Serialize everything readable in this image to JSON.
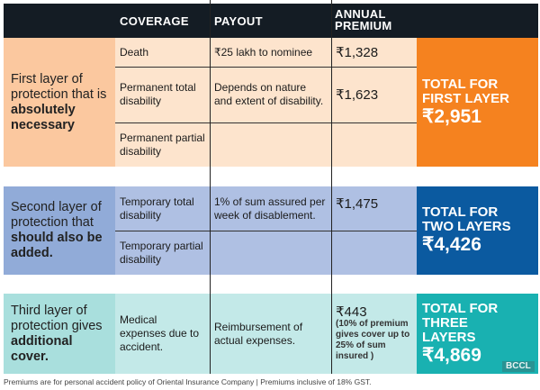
{
  "header": {
    "coverage": "COVERAGE",
    "payout": "PAYOUT",
    "premium_line1": "ANNUAL",
    "premium_line2": "PREMIUM"
  },
  "layers": [
    {
      "label_pre": "First layer of protection that is ",
      "label_bold": "absolutely necessary",
      "rows": [
        {
          "coverage": "Death",
          "payout": "₹25 lakh to nominee",
          "premium": "₹1,328"
        },
        {
          "coverage": "Permanent total disability",
          "payout": "Depends on nature and extent of disability.",
          "premium": "₹1,623"
        },
        {
          "coverage": "Permanent partial disability",
          "payout": "",
          "premium": ""
        }
      ],
      "total_label": "TOTAL FOR FIRST LAYER",
      "total_amount": "₹2,951",
      "colors": {
        "label": "#fbc89f",
        "cell": "#fde4cd",
        "total": "#f5821f"
      }
    },
    {
      "label_pre": "Second layer of protection that ",
      "label_bold": "should also be added",
      "label_post": ".",
      "rows": [
        {
          "coverage": "Temporary total disability",
          "payout": "1% of sum assured per week of disablement.",
          "premium": "₹1,475"
        },
        {
          "coverage": "Temporary partial disability",
          "payout": "",
          "premium": ""
        }
      ],
      "total_label": "TOTAL FOR TWO LAYERS",
      "total_amount": "₹4,426",
      "colors": {
        "label": "#91abd8",
        "cell": "#afc0e3",
        "total": "#0b5aa0"
      }
    },
    {
      "label_pre": "Third layer of protection gives ",
      "label_bold": "additional cover.",
      "rows": [
        {
          "coverage": "Medical expenses due to accident.",
          "payout": "Reimbursement of actual expenses.",
          "premium": "₹443",
          "premium_note": "(10% of premium gives cover up to 25% of sum insured )"
        }
      ],
      "total_label": "TOTAL FOR THREE LAYERS",
      "total_amount": "₹4,869",
      "colors": {
        "label": "#a9dfdd",
        "cell": "#c3e9e8",
        "total": "#19b1b1"
      }
    }
  ],
  "footnote": "Premiums are for personal accident policy of Oriental Insurance Company  |  Premiums inclusive of 18% GST.",
  "watermark": "BCCL"
}
